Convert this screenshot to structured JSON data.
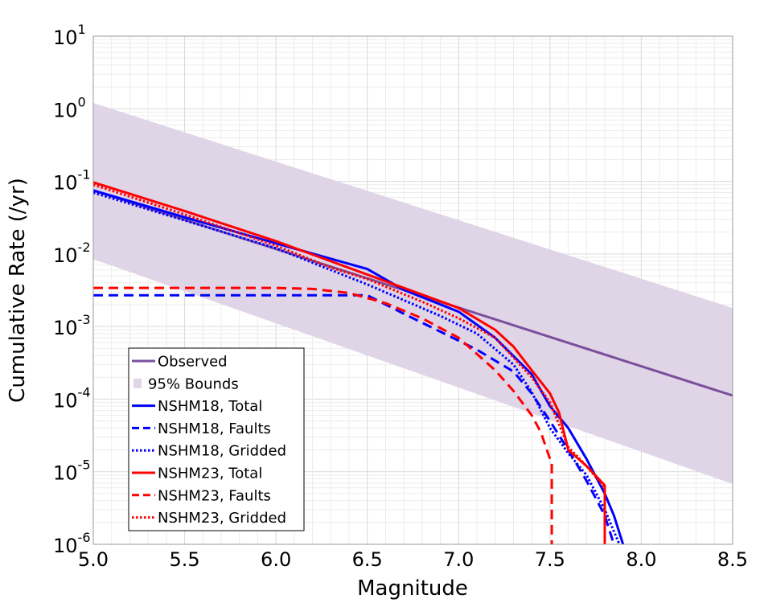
{
  "chart_data": {
    "type": "line",
    "xlabel": "Magnitude",
    "ylabel": "Cumulative Rate (/yr)",
    "xlim": [
      5.0,
      8.5
    ],
    "ylim": [
      1e-06,
      10
    ],
    "yscale": "log",
    "grid": true,
    "legend_position": "bottom-left",
    "x_ticks": [
      "5.0",
      "5.5",
      "6.0",
      "6.5",
      "7.0",
      "7.5",
      "8.0",
      "8.5"
    ],
    "y_ticks": [
      {
        "base": "10",
        "exp": "1",
        "value": 10
      },
      {
        "base": "10",
        "exp": "0",
        "value": 1
      },
      {
        "base": "10",
        "exp": "-1",
        "value": 0.1
      },
      {
        "base": "10",
        "exp": "-2",
        "value": 0.01
      },
      {
        "base": "10",
        "exp": "-3",
        "value": 0.001
      },
      {
        "base": "10",
        "exp": "-4",
        "value": 0.0001
      },
      {
        "base": "10",
        "exp": "-5",
        "value": 1e-05
      },
      {
        "base": "10",
        "exp": "-6",
        "value": 1e-06
      }
    ],
    "bounds": {
      "name": "95% Bounds",
      "color": "#e0d4e7",
      "x": [
        5.0,
        8.5
      ],
      "upper": [
        1.2,
        0.0018
      ],
      "lower": [
        0.0085,
        6.8e-06
      ]
    },
    "series": [
      {
        "name": "Observed",
        "color": "#7b4f9b",
        "style": "solid",
        "x": [
          5.0,
          8.5
        ],
        "y": [
          0.075,
          0.000112
        ]
      },
      {
        "name": "NSHM18, Total",
        "color": "#0000ff",
        "style": "solid",
        "x": [
          5.0,
          5.5,
          6.0,
          6.5,
          6.7,
          7.0,
          7.2,
          7.4,
          7.5,
          7.6,
          7.7,
          7.8,
          7.85,
          7.9
        ],
        "y": [
          0.075,
          0.032,
          0.014,
          0.0062,
          0.0032,
          0.0016,
          0.0007,
          0.00022,
          8e-05,
          4e-05,
          1.5e-05,
          5e-06,
          2.5e-06,
          1e-06
        ]
      },
      {
        "name": "NSHM18, Faults",
        "color": "#0000ff",
        "style": "dashed",
        "x": [
          5.0,
          6.5,
          6.7,
          6.9,
          7.1,
          7.3,
          7.4,
          7.5,
          7.6,
          7.7,
          7.8,
          7.85
        ],
        "y": [
          0.0027,
          0.0027,
          0.0015,
          0.00085,
          0.00048,
          0.00024,
          0.00012,
          5e-05,
          2e-05,
          7.5e-06,
          2.5e-06,
          1e-06
        ]
      },
      {
        "name": "NSHM18, Gridded",
        "color": "#0000ff",
        "style": "dotted",
        "x": [
          5.0,
          5.5,
          6.0,
          6.5,
          6.9,
          7.1,
          7.3,
          7.4,
          7.5,
          7.6,
          7.7,
          7.8,
          7.88
        ],
        "y": [
          0.07,
          0.029,
          0.012,
          0.0038,
          0.0014,
          0.0008,
          0.0003,
          0.000125,
          4e-05,
          1.8e-05,
          9e-06,
          3e-06,
          1e-06
        ]
      },
      {
        "name": "NSHM23, Total",
        "color": "#ff0000",
        "style": "solid",
        "x": [
          5.0,
          5.5,
          6.0,
          6.5,
          7.0,
          7.2,
          7.3,
          7.4,
          7.5,
          7.55,
          7.6,
          7.7,
          7.8,
          7.8
        ],
        "y": [
          0.097,
          0.039,
          0.015,
          0.0052,
          0.0018,
          0.0009,
          0.00053,
          0.00025,
          0.00012,
          6.5e-05,
          2e-05,
          1.2e-05,
          6.5e-06,
          1e-06
        ]
      },
      {
        "name": "NSHM23, Faults",
        "color": "#ff0000",
        "style": "dashed",
        "x": [
          5.0,
          6.0,
          6.2,
          6.4,
          6.6,
          6.8,
          7.0,
          7.2,
          7.3,
          7.4,
          7.45,
          7.5,
          7.51,
          7.51
        ],
        "y": [
          0.0034,
          0.0034,
          0.0033,
          0.0029,
          0.0021,
          0.0013,
          0.0007,
          0.00025,
          0.00013,
          6e-05,
          3.5e-05,
          1.5e-05,
          1.4e-05,
          1e-06
        ]
      },
      {
        "name": "NSHM23, Gridded",
        "color": "#ff0000",
        "style": "dotted",
        "x": [
          5.0,
          5.5,
          6.0,
          6.3,
          6.5,
          6.8,
          7.0,
          7.2,
          7.4,
          7.5,
          7.6,
          7.7,
          7.8,
          7.8
        ],
        "y": [
          0.09,
          0.035,
          0.013,
          0.0065,
          0.0045,
          0.0022,
          0.0013,
          0.0007,
          0.0002,
          9e-05,
          2.2e-05,
          1.2e-05,
          6e-06,
          1e-06
        ]
      }
    ]
  }
}
